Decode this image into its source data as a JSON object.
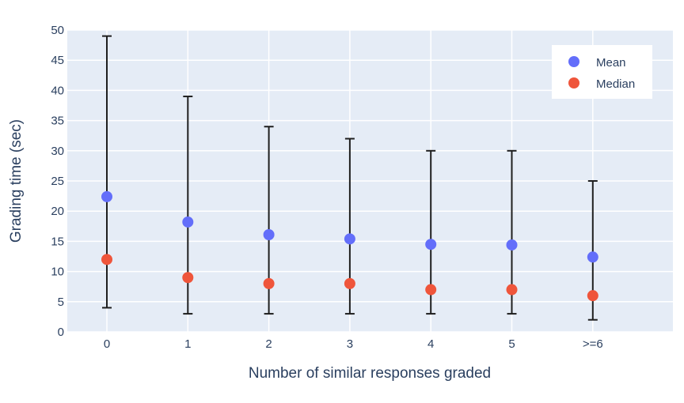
{
  "chart_data": {
    "type": "scatter",
    "title": "",
    "xlabel": "Number of similar responses graded",
    "ylabel": "Grading time (sec)",
    "categories": [
      "0",
      "1",
      "2",
      "3",
      "4",
      "5",
      ">=6"
    ],
    "ylim": [
      0,
      50
    ],
    "yticks": [
      0,
      5,
      10,
      15,
      20,
      25,
      30,
      35,
      40,
      45,
      50
    ],
    "grid": true,
    "legend_position": "top-right",
    "error_bars": {
      "low": [
        4,
        3,
        3,
        3,
        3,
        3,
        2
      ],
      "high": [
        49,
        39,
        34,
        32,
        30,
        30,
        25
      ]
    },
    "series": [
      {
        "name": "Mean",
        "color": "#636efa",
        "values": [
          22.4,
          18.2,
          16.1,
          15.4,
          14.5,
          14.4,
          12.4
        ]
      },
      {
        "name": "Median",
        "color": "#ef553b",
        "values": [
          12,
          9,
          8,
          8,
          7,
          7,
          6
        ]
      }
    ],
    "colors": {
      "plot_background": "#e5ecf6",
      "grid": "#ffffff",
      "error_bar": "#1f1f1f",
      "text": "#2a3f5f"
    }
  }
}
